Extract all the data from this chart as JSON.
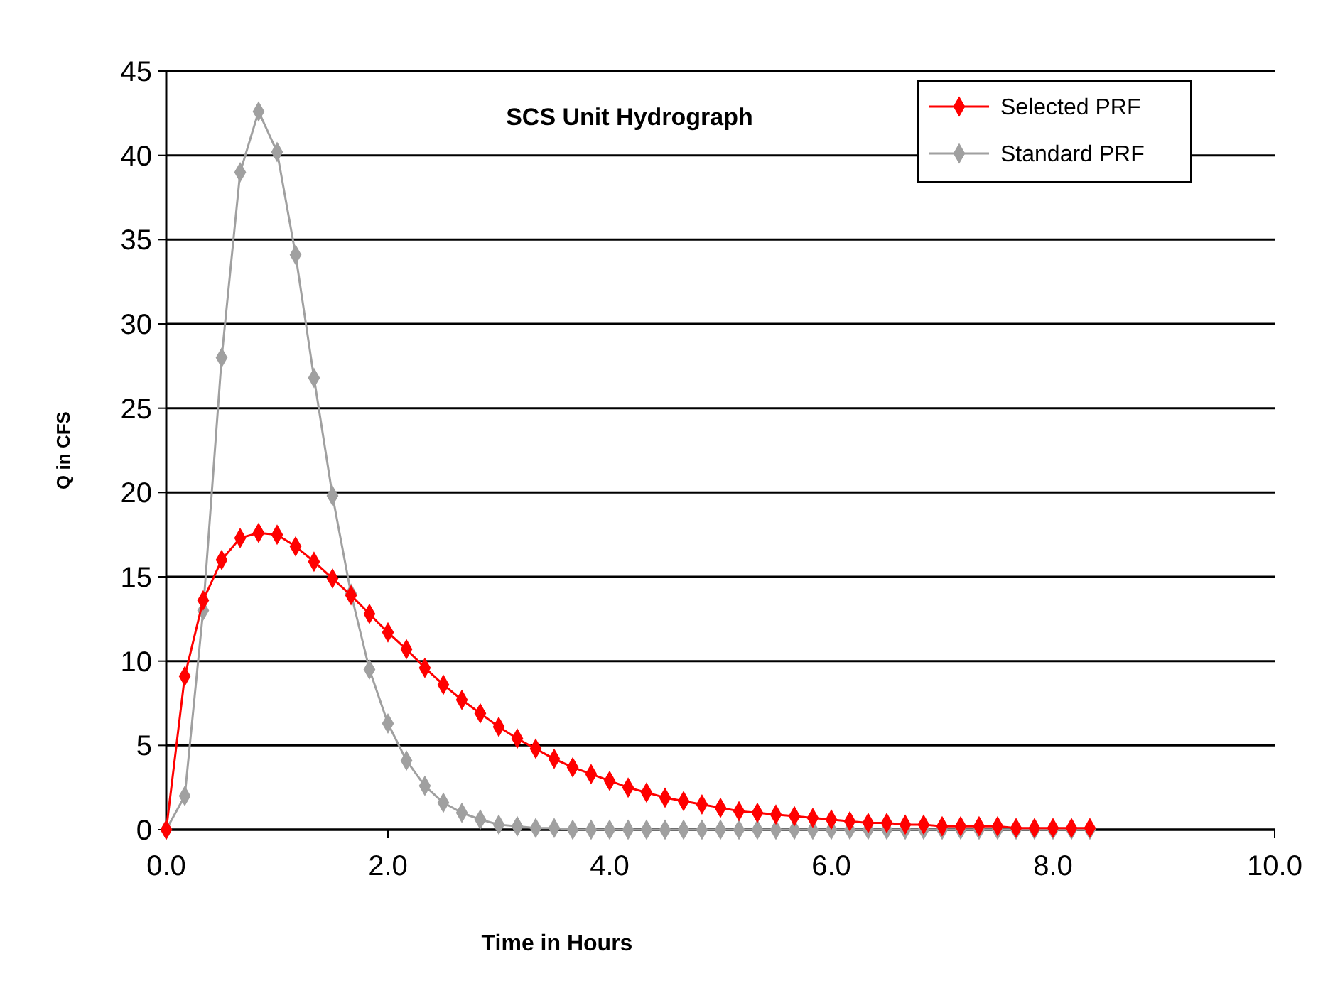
{
  "chart_data": {
    "type": "line",
    "title": "SCS Unit Hydrograph",
    "xlabel": "Time in Hours",
    "ylabel": "Q in CFS",
    "x": [
      0,
      0.167,
      0.333,
      0.5,
      0.667,
      0.833,
      1,
      1.167,
      1.333,
      1.5,
      1.667,
      1.833,
      2,
      2.167,
      2.333,
      2.5,
      2.667,
      2.833,
      3,
      3.167,
      3.333,
      3.5,
      3.667,
      3.833,
      4,
      4.167,
      4.333,
      4.5,
      4.667,
      4.833,
      5,
      5.167,
      5.333,
      5.5,
      5.667,
      5.833,
      6,
      6.167,
      6.333,
      6.5,
      6.667,
      6.833,
      7,
      7.167,
      7.333,
      7.5,
      7.667,
      7.833,
      8,
      8.167,
      8.333
    ],
    "series": [
      {
        "name": "Selected PRF",
        "color": "#ff0000",
        "values": [
          0,
          9.1,
          13.6,
          16.0,
          17.3,
          17.6,
          17.5,
          16.8,
          15.9,
          14.9,
          13.9,
          12.8,
          11.7,
          10.7,
          9.6,
          8.6,
          7.7,
          6.9,
          6.1,
          5.4,
          4.8,
          4.2,
          3.7,
          3.3,
          2.9,
          2.5,
          2.2,
          1.9,
          1.7,
          1.5,
          1.3,
          1.1,
          1.0,
          0.9,
          0.8,
          0.7,
          0.6,
          0.5,
          0.4,
          0.4,
          0.3,
          0.3,
          0.2,
          0.2,
          0.2,
          0.2,
          0.1,
          0.1,
          0.1,
          0.1,
          0.1
        ]
      },
      {
        "name": "Standard PRF",
        "color": "#a0a0a0",
        "values": [
          0,
          2.0,
          13.0,
          28.0,
          39.0,
          42.6,
          40.2,
          34.1,
          26.8,
          19.8,
          14.0,
          9.5,
          6.3,
          4.1,
          2.6,
          1.6,
          1.0,
          0.6,
          0.3,
          0.2,
          0.1,
          0.1,
          0,
          0,
          0,
          0,
          0,
          0,
          0,
          0,
          0,
          0,
          0,
          0,
          0,
          0,
          0,
          0,
          0,
          0,
          0,
          0,
          0,
          0,
          0,
          0,
          0,
          0,
          0,
          0,
          0
        ]
      }
    ],
    "xlim": [
      0,
      10
    ],
    "xticks": [
      {
        "value": 0,
        "label": "0.0"
      },
      {
        "value": 2,
        "label": "2.0"
      },
      {
        "value": 4,
        "label": "4.0"
      },
      {
        "value": 6,
        "label": "6.0"
      },
      {
        "value": 8,
        "label": "8.0"
      },
      {
        "value": 10,
        "label": "10.0"
      }
    ],
    "ylim": [
      0,
      45
    ],
    "yticks": [
      0,
      5,
      10,
      15,
      20,
      25,
      30,
      35,
      40,
      45
    ],
    "grid": "y",
    "legend": "top right",
    "marker": "diamond",
    "line_style": "solid"
  }
}
